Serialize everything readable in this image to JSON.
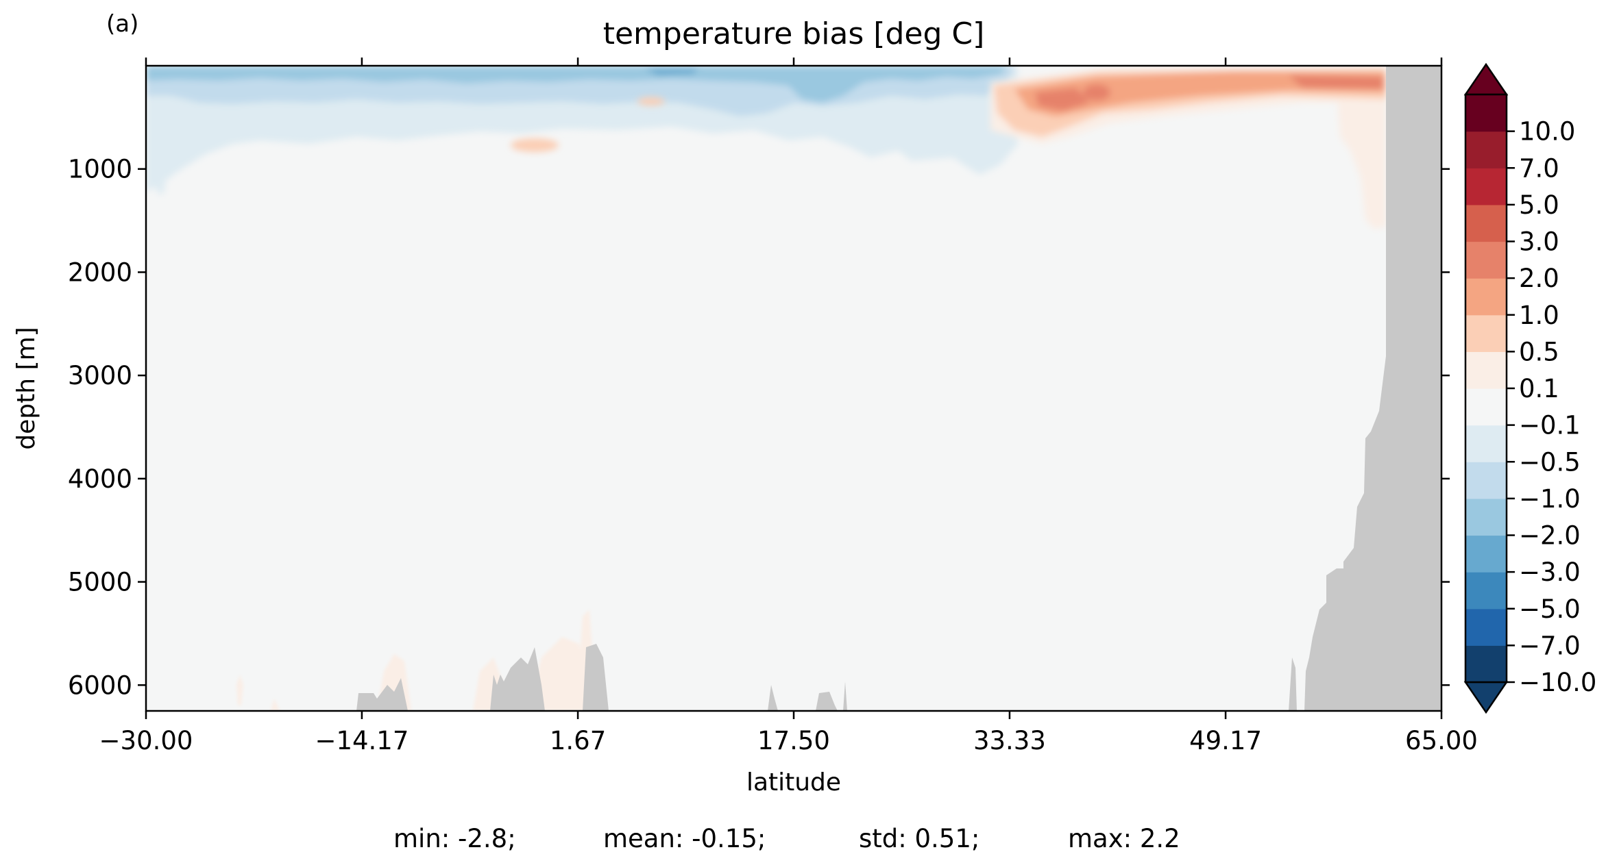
{
  "panel_label": "(a)",
  "chart_data": {
    "type": "heatmap",
    "title": "temperature bias [deg C]",
    "xlabel": "latitude",
    "ylabel": "depth [m]",
    "xlim": [
      -30.0,
      65.0
    ],
    "ylim": [
      6250,
      0
    ],
    "y_inverted": true,
    "grid": false,
    "x_ticks": [
      "−30.00",
      "−14.17",
      "1.67",
      "17.50",
      "33.33",
      "49.17",
      "65.00"
    ],
    "x_tick_values": [
      -30.0,
      -14.17,
      1.67,
      17.5,
      33.33,
      49.17,
      65.0
    ],
    "y_ticks": [
      "1000",
      "2000",
      "3000",
      "4000",
      "5000",
      "6000"
    ],
    "y_tick_values": [
      1000,
      2000,
      3000,
      4000,
      5000,
      6000
    ],
    "colorbar": {
      "levels": [
        -10.0,
        -7.0,
        -5.0,
        -3.0,
        -2.0,
        -1.0,
        -0.5,
        -0.1,
        0.1,
        0.5,
        1.0,
        2.0,
        3.0,
        5.0,
        7.0,
        10.0
      ],
      "tick_labels": [
        "−10.0",
        "−7.0",
        "−5.0",
        "−3.0",
        "−2.0",
        "−1.0",
        "−0.5",
        "−0.1",
        "0.1",
        "0.5",
        "1.0",
        "2.0",
        "3.0",
        "5.0",
        "7.0",
        "10.0"
      ],
      "colors": [
        "#12406d",
        "#2166ac",
        "#3c88bc",
        "#67a9cf",
        "#9ac8e0",
        "#c2dbec",
        "#deebf2",
        "#f5f6f6",
        "#faeee6",
        "#fbcfb6",
        "#f4a582",
        "#e6826a",
        "#d6604d",
        "#b72633",
        "#981d2c",
        "#67001f"
      ],
      "extend": "both"
    },
    "features": [
      {
        "region": "surface band, lat -30 to 33, depth 0-500 m",
        "bias_range": [
          -2.0,
          -0.1
        ]
      },
      {
        "region": "lat -30 to -28, depth 0-1250 m",
        "bias_range": [
          -0.5,
          -0.1
        ]
      },
      {
        "region": "lat 33 to 63, depth 50-600 m",
        "bias_range": [
          0.5,
          3.0
        ]
      },
      {
        "region": "lat 60 to 63, depth 200-1600 m",
        "bias_range": [
          0.1,
          0.5
        ]
      },
      {
        "region": "lat 63 to 65, all depths",
        "value": "land/mask"
      },
      {
        "region": "interior ocean",
        "bias_range": [
          -0.1,
          0.1
        ]
      }
    ],
    "stats": {
      "min": -2.8,
      "mean": -0.15,
      "std": 0.51,
      "max": 2.2
    }
  },
  "stats_line": {
    "min": "min: -2.8;",
    "mean": "mean: -0.15;",
    "std": "std: 0.51;",
    "max": "max: 2.2"
  },
  "colors": {
    "land": "#c8c8c8",
    "background_field": "#f5f6f6"
  }
}
